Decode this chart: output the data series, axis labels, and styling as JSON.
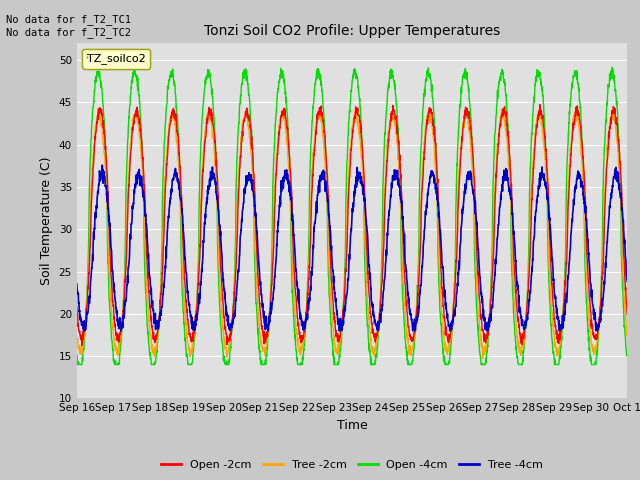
{
  "title": "Tonzi Soil CO2 Profile: Upper Temperatures",
  "xlabel": "Time",
  "ylabel": "Soil Temperature (C)",
  "ylim": [
    10,
    52
  ],
  "yticks": [
    10,
    15,
    20,
    25,
    30,
    35,
    40,
    45,
    50
  ],
  "annotation_text": "No data for f_T2_TC1\nNo data for f_T2_TC2",
  "legend_label": "TZ_soilco2",
  "series_labels": [
    "Open -2cm",
    "Tree -2cm",
    "Open -4cm",
    "Tree -4cm"
  ],
  "series_colors": [
    "#ff0000",
    "#ffa500",
    "#00dd00",
    "#0000cc"
  ],
  "fig_bg_color": "#c8c8c8",
  "plot_bg_color": "#e0e0e0",
  "xtick_labels": [
    "Sep 16",
    "Sep 17",
    "Sep 18",
    "Sep 19",
    "Sep 20",
    "Sep 21",
    "Sep 22",
    "Sep 23",
    "Sep 24",
    "Sep 25",
    "Sep 26",
    "Sep 27",
    "Sep 28",
    "Sep 29",
    "Sep 30",
    "Oct 1"
  ]
}
